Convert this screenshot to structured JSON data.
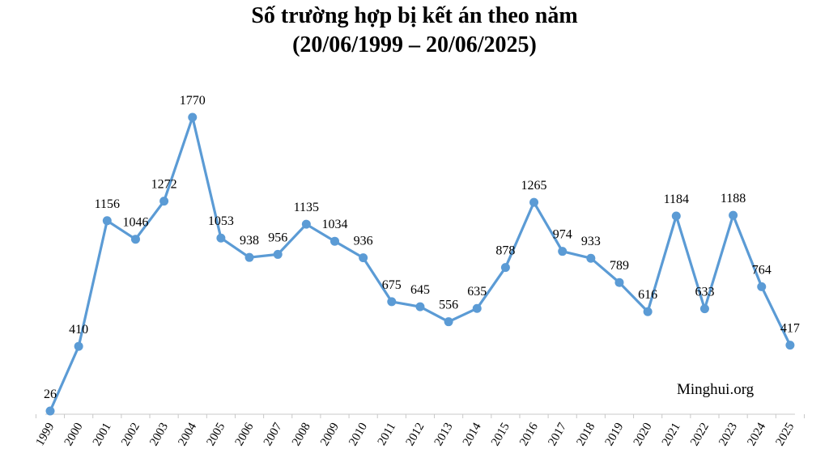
{
  "chart_data": {
    "type": "line",
    "title": "Số trường hợp bị kết án theo năm",
    "subtitle": "(20/06/1999 – 20/06/2025)",
    "xlabel": "",
    "ylabel": "",
    "categories": [
      "1999",
      "2000",
      "2001",
      "2002",
      "2003",
      "2004",
      "2005",
      "2006",
      "2007",
      "2008",
      "2009",
      "2010",
      "2011",
      "2012",
      "2013",
      "2014",
      "2015",
      "2016",
      "2017",
      "2018",
      "2019",
      "2020",
      "2021",
      "2022",
      "2023",
      "2024",
      "2025"
    ],
    "values": [
      26,
      410,
      1156,
      1046,
      1272,
      1770,
      1053,
      938,
      956,
      1135,
      1034,
      936,
      675,
      645,
      556,
      635,
      878,
      1265,
      974,
      933,
      789,
      616,
      1184,
      633,
      1188,
      764,
      417
    ],
    "ylim": [
      0,
      1800
    ],
    "grid": false,
    "legend": "none",
    "source": "Minghui.org",
    "colors": {
      "line": "#5b9bd5",
      "marker": "#5b9bd5",
      "axis": "#c8c8c8"
    }
  }
}
